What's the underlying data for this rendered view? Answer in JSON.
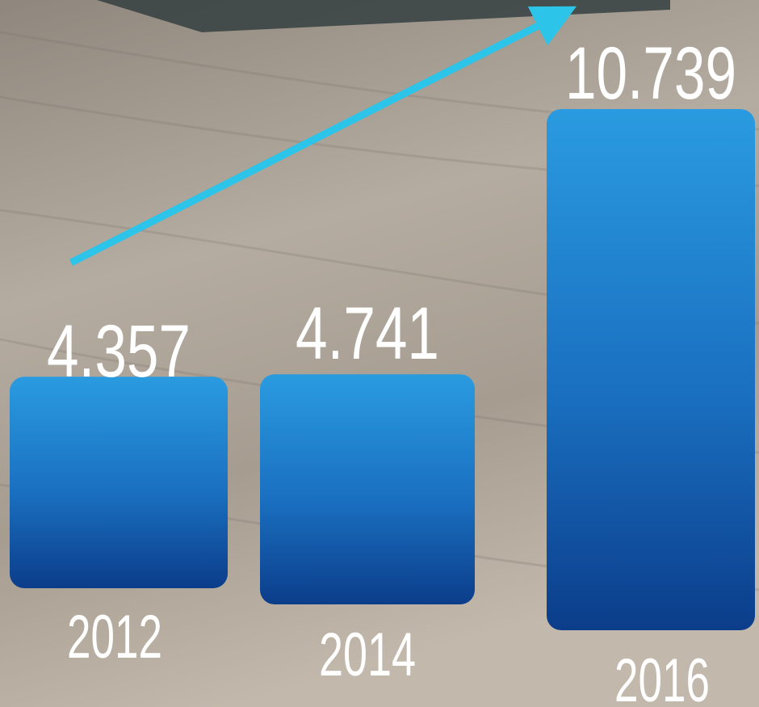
{
  "chart_data": {
    "type": "bar",
    "categories": [
      "2012",
      "2014",
      "2016"
    ],
    "values": [
      4.357,
      4.741,
      10.739
    ],
    "color": "#2a9be0"
  }
}
